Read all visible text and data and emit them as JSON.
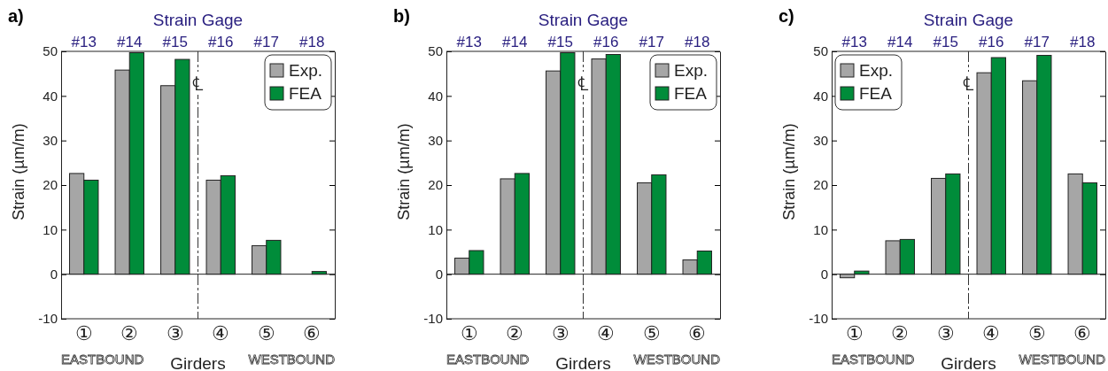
{
  "chart_data": [
    {
      "type": "bar",
      "title": "a)",
      "x2label": "Strain Gage",
      "xlabel": "Girders",
      "ylabel": "Strain (µm/m)",
      "categories": [
        "①",
        "②",
        "③",
        "④",
        "⑤",
        "⑥"
      ],
      "series": [
        {
          "name": "Exp.",
          "color": "#a6a6a6",
          "values": [
            22.6,
            45.8,
            42.3,
            21.1,
            6.4,
            null
          ]
        },
        {
          "name": "FEA",
          "color": "#008c3a",
          "values": [
            21.1,
            49.7,
            48.2,
            22.1,
            7.6,
            0.6
          ]
        }
      ],
      "ylim": [
        -10,
        50
      ],
      "yticks": [
        -10,
        0,
        10,
        20,
        30,
        40,
        50
      ],
      "legend": "top right",
      "annotations": [
        "#13",
        "#14",
        "#15",
        "#16",
        "#17",
        "#18",
        "EASTBOUND",
        "WESTBOUND",
        "℄"
      ]
    },
    {
      "type": "bar",
      "title": "b)",
      "x2label": "Strain Gage",
      "xlabel": "Girders",
      "ylabel": "Strain (µm/m)",
      "categories": [
        "①",
        "②",
        "③",
        "④",
        "⑤",
        "⑥"
      ],
      "series": [
        {
          "name": "Exp.",
          "color": "#a6a6a6",
          "values": [
            3.6,
            21.4,
            45.6,
            48.3,
            20.5,
            3.2
          ]
        },
        {
          "name": "FEA",
          "color": "#008c3a",
          "values": [
            5.3,
            22.6,
            49.7,
            49.3,
            22.3,
            5.2
          ]
        }
      ],
      "ylim": [
        -10,
        50
      ],
      "yticks": [
        -10,
        0,
        10,
        20,
        30,
        40,
        50
      ],
      "legend": "top right",
      "annotations": [
        "#13",
        "#14",
        "#15",
        "#16",
        "#17",
        "#18",
        "EASTBOUND",
        "WESTBOUND",
        "℄"
      ]
    },
    {
      "type": "bar",
      "title": "c)",
      "x2label": "Strain Gage",
      "xlabel": "Girders",
      "ylabel": "Strain (µm/m)",
      "categories": [
        "①",
        "②",
        "③",
        "④",
        "⑤",
        "⑥"
      ],
      "series": [
        {
          "name": "Exp.",
          "color": "#a6a6a6",
          "values": [
            -0.8,
            7.5,
            21.5,
            45.2,
            43.4,
            22.5
          ]
        },
        {
          "name": "FEA",
          "color": "#008c3a",
          "values": [
            0.7,
            7.8,
            22.5,
            48.6,
            49.1,
            20.5
          ]
        }
      ],
      "ylim": [
        -10,
        50
      ],
      "yticks": [
        -10,
        0,
        10,
        20,
        30,
        40,
        50
      ],
      "legend": "top left",
      "annotations": [
        "#13",
        "#14",
        "#15",
        "#16",
        "#17",
        "#18",
        "EASTBOUND",
        "WESTBOUND",
        "℄"
      ]
    }
  ]
}
